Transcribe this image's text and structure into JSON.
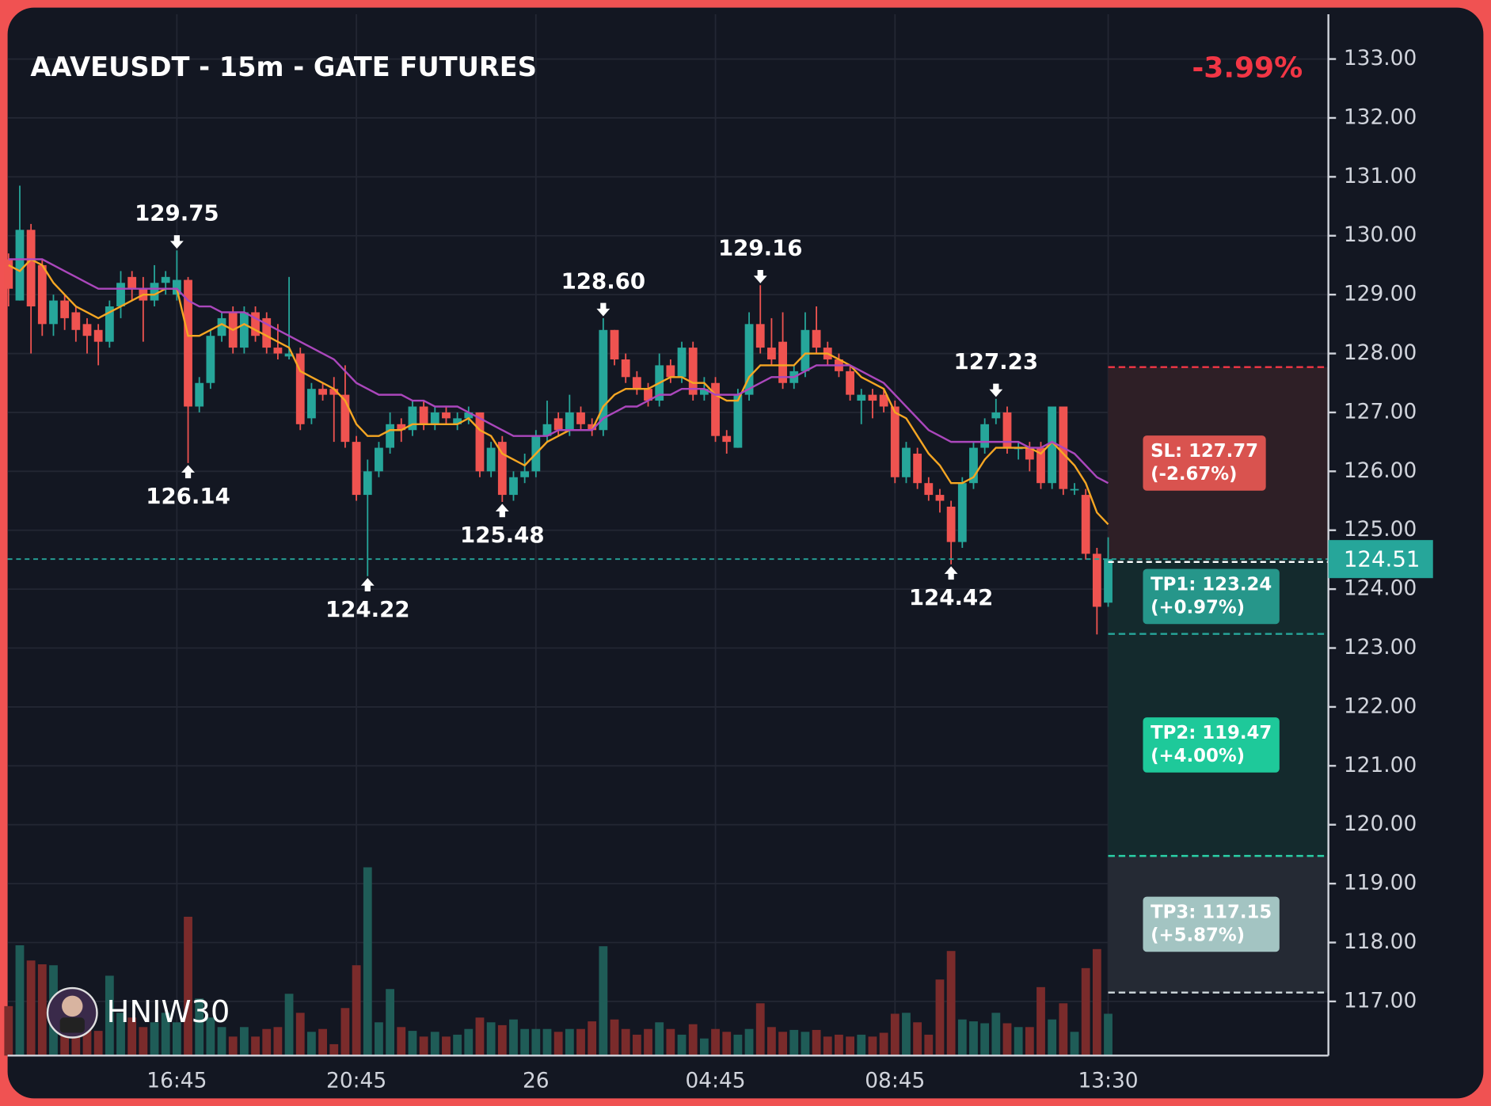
{
  "chart_data": {
    "type": "candlestick",
    "title": "AAVEUSDT - 15m - GATE FUTURES",
    "change": "-3.99%",
    "watermark": "HNIW30",
    "up_color": "#26a69a",
    "down_color": "#ef5350",
    "grid": true,
    "ylim": [
      116.08,
      133.76
    ],
    "yticks": [
      {
        "value": 117,
        "label": "117.00"
      },
      {
        "value": 118,
        "label": "118.00"
      },
      {
        "value": 119,
        "label": "119.00"
      },
      {
        "value": 120,
        "label": "120.00"
      },
      {
        "value": 121,
        "label": "121.00"
      },
      {
        "value": 122,
        "label": "122.00"
      },
      {
        "value": 123,
        "label": "123.00"
      },
      {
        "value": 124,
        "label": "124.00"
      },
      {
        "value": 125,
        "label": "125.00"
      },
      {
        "value": 126,
        "label": "126.00"
      },
      {
        "value": 127,
        "label": "127.00"
      },
      {
        "value": 128,
        "label": "128.00"
      },
      {
        "value": 129,
        "label": "129.00"
      },
      {
        "value": 130,
        "label": "130.00"
      },
      {
        "value": 131,
        "label": "131.00"
      },
      {
        "value": 132,
        "label": "132.00"
      },
      {
        "value": 133,
        "label": "133.00"
      }
    ],
    "categories": [
      null,
      null,
      null,
      null,
      null,
      null,
      null,
      null,
      null,
      null,
      null,
      null,
      null,
      null,
      null,
      "16:45",
      null,
      null,
      null,
      null,
      null,
      null,
      null,
      null,
      null,
      null,
      null,
      null,
      null,
      null,
      null,
      "20:45",
      null,
      null,
      null,
      null,
      null,
      null,
      null,
      null,
      null,
      null,
      null,
      null,
      null,
      null,
      null,
      "26",
      null,
      null,
      null,
      null,
      null,
      null,
      null,
      null,
      null,
      null,
      null,
      null,
      null,
      null,
      null,
      "04:45",
      null,
      null,
      null,
      null,
      null,
      null,
      null,
      null,
      null,
      null,
      null,
      null,
      null,
      null,
      null,
      "08:45",
      null,
      null,
      null,
      null,
      null,
      null,
      null,
      null,
      null,
      null,
      null,
      null,
      null,
      null,
      null,
      null,
      null,
      null,
      "13:30"
    ],
    "open": [
      129.6,
      128.9,
      130.1,
      129.5,
      128.5,
      128.9,
      128.7,
      128.5,
      128.4,
      128.2,
      128.8,
      129.3,
      129.1,
      128.9,
      129.2,
      129.0,
      129.25,
      127.1,
      127.5,
      128.3,
      128.7,
      128.1,
      128.7,
      128.6,
      128.1,
      127.95,
      128.0,
      126.9,
      127.4,
      127.4,
      127.3,
      126.5,
      125.6,
      126.0,
      126.4,
      126.8,
      126.7,
      127.1,
      126.8,
      127.0,
      126.8,
      126.9,
      127.0,
      126.0,
      126.5,
      125.6,
      125.9,
      126.0,
      126.6,
      126.9,
      126.7,
      127.0,
      126.8,
      126.7,
      128.4,
      127.9,
      127.6,
      127.4,
      127.2,
      127.8,
      127.6,
      128.1,
      127.3,
      127.5,
      126.6,
      126.4,
      127.3,
      128.5,
      128.1,
      128.2,
      127.5,
      127.7,
      128.4,
      128.1,
      127.9,
      127.7,
      127.2,
      127.3,
      127.3,
      127.1,
      125.9,
      126.3,
      125.8,
      125.6,
      125.4,
      124.8,
      125.8,
      126.4,
      126.9,
      127.0,
      126.4,
      126.4,
      126.4,
      125.8,
      127.1,
      125.7,
      125.6,
      124.6,
      123.77
    ],
    "high": [
      129.7,
      130.85,
      130.2,
      129.6,
      129.0,
      129.0,
      128.8,
      128.6,
      128.5,
      128.9,
      129.4,
      129.4,
      129.3,
      129.5,
      129.4,
      129.75,
      129.3,
      127.6,
      128.4,
      128.7,
      128.8,
      128.8,
      128.8,
      128.7,
      128.5,
      129.3,
      128.1,
      127.5,
      127.5,
      127.6,
      127.8,
      126.6,
      126.2,
      126.5,
      127.0,
      126.9,
      127.2,
      127.2,
      127.1,
      127.1,
      127.0,
      127.1,
      127.0,
      126.5,
      126.6,
      126.0,
      126.3,
      126.7,
      127.2,
      127.0,
      127.3,
      127.1,
      126.9,
      128.6,
      128.4,
      128.0,
      127.7,
      127.5,
      128.0,
      127.9,
      128.2,
      128.2,
      127.6,
      127.6,
      126.7,
      127.4,
      128.7,
      129.16,
      128.6,
      128.7,
      127.8,
      128.7,
      128.8,
      128.2,
      128.0,
      127.8,
      127.4,
      127.4,
      127.4,
      127.2,
      126.5,
      126.4,
      125.9,
      125.7,
      125.5,
      125.9,
      126.5,
      126.9,
      127.23,
      127.1,
      126.5,
      126.5,
      126.5,
      127.1,
      127.1,
      125.8,
      125.7,
      124.7,
      124.88
    ],
    "low": [
      128.8,
      128.9,
      128.0,
      128.3,
      128.3,
      128.4,
      128.2,
      128.0,
      127.8,
      128.1,
      128.6,
      128.9,
      128.2,
      128.8,
      129.0,
      128.9,
      126.14,
      127.0,
      127.4,
      128.2,
      128.0,
      128.0,
      128.2,
      128.0,
      127.9,
      127.9,
      126.7,
      126.8,
      127.2,
      126.5,
      126.4,
      125.5,
      124.22,
      125.9,
      126.3,
      126.5,
      126.6,
      126.7,
      126.7,
      126.8,
      126.7,
      126.8,
      125.9,
      125.9,
      125.48,
      125.5,
      125.8,
      125.9,
      126.5,
      126.6,
      126.6,
      126.7,
      126.6,
      126.6,
      127.8,
      127.5,
      127.3,
      127.1,
      127.1,
      127.5,
      127.5,
      127.2,
      127.2,
      126.5,
      126.3,
      126.4,
      127.2,
      128.0,
      127.8,
      127.4,
      127.4,
      127.6,
      128.0,
      127.8,
      127.6,
      127.2,
      126.8,
      126.9,
      127.0,
      125.8,
      125.8,
      125.7,
      125.5,
      125.3,
      124.42,
      124.7,
      125.7,
      126.3,
      126.8,
      126.3,
      126.2,
      126.0,
      125.7,
      125.7,
      125.6,
      125.6,
      124.5,
      123.23,
      123.7
    ],
    "close": [
      129.1,
      130.1,
      128.8,
      128.5,
      128.9,
      128.6,
      128.4,
      128.3,
      128.2,
      128.8,
      129.2,
      129.1,
      128.9,
      129.2,
      129.3,
      129.25,
      127.1,
      127.5,
      128.3,
      128.6,
      128.1,
      128.7,
      128.3,
      128.1,
      128.0,
      128.0,
      126.8,
      127.4,
      127.3,
      127.3,
      126.5,
      125.6,
      126.0,
      126.4,
      126.8,
      126.7,
      127.1,
      126.8,
      127.0,
      126.9,
      126.9,
      127.0,
      126.0,
      126.4,
      125.6,
      125.9,
      126.0,
      126.6,
      126.8,
      126.7,
      127.0,
      126.8,
      126.7,
      128.4,
      127.9,
      127.6,
      127.4,
      127.2,
      127.8,
      127.6,
      128.1,
      127.3,
      127.4,
      126.6,
      126.5,
      127.3,
      128.5,
      128.1,
      127.9,
      127.5,
      127.7,
      128.4,
      128.1,
      127.9,
      127.7,
      127.3,
      127.3,
      127.2,
      127.1,
      125.9,
      126.4,
      125.8,
      125.6,
      125.5,
      124.8,
      125.8,
      126.4,
      126.8,
      127.0,
      126.4,
      126.4,
      126.2,
      125.8,
      127.1,
      125.7,
      125.7,
      124.6,
      123.7,
      124.51
    ],
    "volume": {
      "lim": [
        0,
        400
      ],
      "up_color": "#1f5c57",
      "down_color": "#7a2b2b",
      "values": [
        52,
        116,
        100,
        96,
        95,
        62,
        46,
        32,
        26,
        84,
        45,
        40,
        30,
        35,
        45,
        35,
        146,
        60,
        40,
        30,
        20,
        30,
        20,
        28,
        30,
        65,
        45,
        25,
        28,
        12,
        50,
        95,
        198,
        35,
        70,
        30,
        26,
        20,
        25,
        20,
        22,
        28,
        40,
        35,
        32,
        38,
        28,
        28,
        28,
        25,
        28,
        28,
        36,
        115,
        38,
        28,
        22,
        28,
        35,
        28,
        22,
        33,
        18,
        28,
        25,
        22,
        28,
        55,
        30,
        25,
        27,
        25,
        27,
        20,
        22,
        20,
        22,
        20,
        24,
        44,
        45,
        35,
        22,
        80,
        110,
        38,
        36,
        34,
        45,
        34,
        30,
        30,
        72,
        38,
        55,
        25,
        92,
        112,
        44
      ]
    },
    "moving_averages": [
      {
        "color": "#f5a623",
        "values": [
          129.5,
          129.4,
          129.6,
          129.5,
          129.2,
          129.0,
          128.8,
          128.7,
          128.6,
          128.7,
          128.8,
          128.9,
          129.0,
          129.0,
          129.1,
          129.1,
          128.3,
          128.3,
          128.4,
          128.5,
          128.4,
          128.5,
          128.4,
          128.3,
          128.2,
          128.1,
          127.7,
          127.6,
          127.5,
          127.4,
          127.2,
          126.8,
          126.6,
          126.6,
          126.7,
          126.7,
          126.8,
          126.8,
          126.8,
          126.8,
          126.8,
          126.9,
          126.7,
          126.6,
          126.3,
          126.2,
          126.1,
          126.3,
          126.5,
          126.6,
          126.7,
          126.7,
          126.7,
          127.1,
          127.3,
          127.4,
          127.4,
          127.4,
          127.5,
          127.6,
          127.6,
          127.5,
          127.5,
          127.3,
          127.2,
          127.2,
          127.6,
          127.8,
          127.8,
          127.8,
          127.8,
          128.0,
          128.0,
          128.0,
          127.9,
          127.8,
          127.6,
          127.5,
          127.4,
          127.0,
          126.9,
          126.6,
          126.3,
          126.1,
          125.8,
          125.8,
          125.9,
          126.2,
          126.4,
          126.4,
          126.4,
          126.4,
          126.3,
          126.5,
          126.3,
          126.1,
          125.8,
          125.3,
          125.1
        ]
      },
      {
        "color": "#ab47bc",
        "values": [
          129.6,
          129.6,
          129.6,
          129.6,
          129.5,
          129.4,
          129.3,
          129.2,
          129.1,
          129.1,
          129.1,
          129.1,
          129.1,
          129.1,
          129.1,
          129.1,
          128.9,
          128.8,
          128.8,
          128.7,
          128.7,
          128.7,
          128.6,
          128.5,
          128.4,
          128.3,
          128.2,
          128.1,
          128.0,
          127.9,
          127.7,
          127.5,
          127.4,
          127.3,
          127.3,
          127.3,
          127.2,
          127.2,
          127.1,
          127.1,
          127.1,
          127.0,
          126.9,
          126.8,
          126.7,
          126.6,
          126.6,
          126.6,
          126.6,
          126.7,
          126.7,
          126.7,
          126.7,
          126.9,
          127.0,
          127.1,
          127.1,
          127.2,
          127.3,
          127.3,
          127.4,
          127.4,
          127.4,
          127.3,
          127.3,
          127.3,
          127.4,
          127.5,
          127.6,
          127.6,
          127.6,
          127.7,
          127.8,
          127.8,
          127.8,
          127.8,
          127.7,
          127.6,
          127.5,
          127.3,
          127.1,
          126.9,
          126.7,
          126.6,
          126.5,
          126.5,
          126.5,
          126.5,
          126.5,
          126.5,
          126.5,
          126.4,
          126.4,
          126.5,
          126.4,
          126.3,
          126.1,
          125.9,
          125.8
        ]
      }
    ],
    "annotations": [
      {
        "candle": 15,
        "position": "above",
        "value": 129.75,
        "label": "129.75"
      },
      {
        "candle": 16,
        "position": "below",
        "value": 126.14,
        "label": "126.14"
      },
      {
        "candle": 32,
        "position": "below",
        "value": 124.22,
        "label": "124.22"
      },
      {
        "candle": 44,
        "position": "below",
        "value": 125.48,
        "label": "125.48"
      },
      {
        "candle": 53,
        "position": "above",
        "value": 128.6,
        "label": "128.60"
      },
      {
        "candle": 67,
        "position": "above",
        "value": 129.16,
        "label": "129.16"
      },
      {
        "candle": 84,
        "position": "below",
        "value": 124.42,
        "label": "124.42"
      },
      {
        "candle": 88,
        "position": "above",
        "value": 127.23,
        "label": "127.23"
      }
    ],
    "levels": [
      {
        "label": "SL: 127.77",
        "change": "(-2.67%)",
        "value": 127.77,
        "color": "#f23645",
        "box_color": "#d9534f"
      },
      {
        "label": "TP1: 123.24",
        "change": "(+0.97%)",
        "value": 123.24,
        "color": "#26a69a",
        "box_color": "#26968a"
      },
      {
        "label": "TP2: 119.47",
        "change": "(+4.00%)",
        "value": 119.47,
        "color": "#2ad1a6",
        "box_color": "#1ec99a"
      },
      {
        "label": "TP3: 117.15",
        "change": "(+5.87%)",
        "value": 117.15,
        "color": "#cfd8dc",
        "box_color": "#a3c4c2"
      }
    ]
  }
}
